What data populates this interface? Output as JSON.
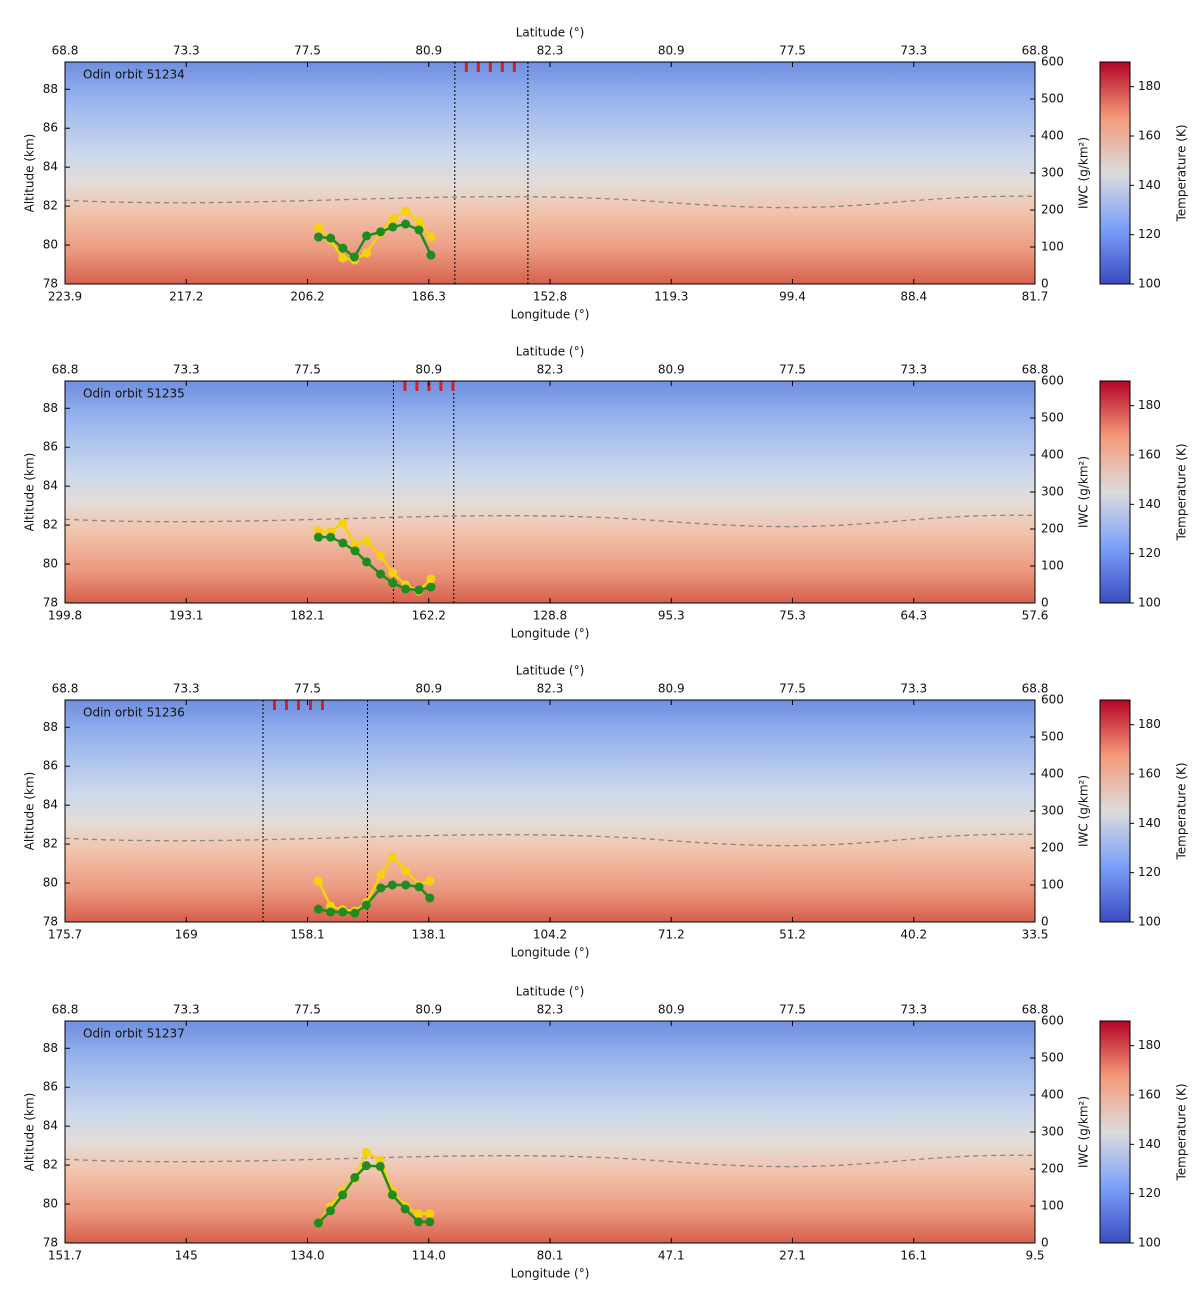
{
  "chart_data": [
    {
      "type": "line",
      "annotation": "Odin orbit 51234",
      "xlabel": "Longitude (°)",
      "x2label": "Latitude (°)",
      "ylabel": "Altitude (km)",
      "y2label": "IWC (g/km²)",
      "colorbar_label": "Temperature (K)",
      "xticks": [
        223.9,
        217.2,
        206.2,
        186.3,
        152.8,
        119.3,
        99.4,
        88.4,
        81.7
      ],
      "x2ticks": [
        68.8,
        73.3,
        77.5,
        80.9,
        82.3,
        80.9,
        77.5,
        73.3,
        68.8
      ],
      "ylim": [
        78,
        89.4
      ],
      "yticks": [
        78,
        80,
        82,
        84,
        86,
        88
      ],
      "y2lim": [
        0,
        600
      ],
      "y2ticks": [
        0,
        100,
        200,
        300,
        400,
        500,
        600
      ],
      "clim": [
        100,
        190
      ],
      "cticks": [
        100,
        120,
        140,
        160,
        180
      ],
      "vlines": [
        179.1,
        158.9
      ],
      "x": [
        204.4,
        202.4,
        200.4,
        198.5,
        196.5,
        194.2,
        192.2,
        190.1,
        187.9,
        185.7
      ],
      "series": [
        {
          "color": "#f5d20a",
          "axis": "y2",
          "values": [
            154,
            119,
            70,
            65,
            84,
            138,
            176,
            197,
            170,
            127
          ]
        },
        {
          "color": "#1e8c1e",
          "axis": "y2",
          "values": [
            127,
            124,
            97,
            73,
            130,
            141,
            154,
            162,
            146,
            78
          ]
        }
      ]
    },
    {
      "type": "line",
      "annotation": "Odin orbit 51235",
      "xlabel": "Longitude (°)",
      "x2label": "Latitude (°)",
      "ylabel": "Altitude (km)",
      "y2label": "IWC (g/km²)",
      "colorbar_label": "Temperature (K)",
      "xticks": [
        199.8,
        193.1,
        182.1,
        162.2,
        128.8,
        95.3,
        75.3,
        64.3,
        57.6
      ],
      "x2ticks": [
        68.8,
        73.3,
        77.5,
        80.9,
        82.3,
        80.9,
        77.5,
        73.3,
        68.8
      ],
      "ylim": [
        78,
        89.4
      ],
      "yticks": [
        78,
        80,
        82,
        84,
        86,
        88
      ],
      "y2lim": [
        0,
        600
      ],
      "y2ticks": [
        0,
        100,
        200,
        300,
        400,
        500,
        600
      ],
      "clim": [
        100,
        190
      ],
      "cticks": [
        100,
        120,
        140,
        160,
        180
      ],
      "vlines": [
        168.0,
        155.3
      ],
      "x": [
        180.3,
        178.3,
        176.3,
        174.3,
        172.4,
        170.1,
        168.1,
        166.0,
        163.8,
        161.6
      ],
      "series": [
        {
          "color": "#f5d20a",
          "axis": "y2",
          "values": [
            195,
            192,
            216,
            157,
            168,
            127,
            81,
            49,
            32,
            65
          ]
        },
        {
          "color": "#1e8c1e",
          "axis": "y2",
          "values": [
            178,
            178,
            162,
            141,
            111,
            78,
            54,
            38,
            35,
            43
          ]
        }
      ]
    },
    {
      "type": "line",
      "annotation": "Odin orbit 51236",
      "xlabel": "Longitude (°)",
      "x2label": "Latitude (°)",
      "ylabel": "Altitude (km)",
      "y2label": "IWC (g/km²)",
      "colorbar_label": "Temperature (K)",
      "xticks": [
        175.7,
        169.0,
        158.1,
        138.1,
        104.2,
        71.2,
        51.2,
        40.2,
        33.5
      ],
      "x2ticks": [
        68.8,
        73.3,
        77.5,
        80.9,
        82.3,
        80.9,
        77.5,
        73.3,
        68.8
      ],
      "ylim": [
        78,
        89.4
      ],
      "yticks": [
        78,
        80,
        82,
        84,
        86,
        88
      ],
      "y2lim": [
        0,
        600
      ],
      "y2ticks": [
        0,
        100,
        200,
        300,
        400,
        500,
        600
      ],
      "clim": [
        100,
        190
      ],
      "cticks": [
        100,
        120,
        140,
        160,
        180
      ],
      "vlines": [
        162.1,
        148.2
      ],
      "x": [
        156.3,
        154.3,
        152.3,
        150.3,
        148.4,
        146.0,
        144.1,
        141.9,
        139.7,
        137.8
      ],
      "series": [
        {
          "color": "#f5d20a",
          "axis": "y2",
          "values": [
            111,
            43,
            33,
            30,
            52,
            128,
            174,
            139,
            100,
            111
          ]
        },
        {
          "color": "#1e8c1e",
          "axis": "y2",
          "values": [
            35,
            27,
            27,
            24,
            46,
            92,
            100,
            100,
            95,
            65
          ]
        }
      ]
    },
    {
      "type": "line",
      "annotation": "Odin orbit 51237",
      "xlabel": "Longitude (°)",
      "x2label": "Latitude (°)",
      "ylabel": "Altitude (km)",
      "y2label": "IWC (g/km²)",
      "colorbar_label": "Temperature (K)",
      "xticks": [
        151.7,
        145.0,
        {
          "value": 134,
          "label": "134.0"
        },
        {
          "value": 114,
          "label": "114.0"
        },
        80.1,
        47.1,
        27.1,
        16.1,
        9.5
      ],
      "x2ticks": [
        68.8,
        73.3,
        77.5,
        80.9,
        82.3,
        80.9,
        77.5,
        73.3,
        68.8
      ],
      "ylim": [
        78,
        89.4
      ],
      "yticks": [
        78,
        80,
        82,
        84,
        86,
        88
      ],
      "y2lim": [
        0,
        600
      ],
      "y2ticks": [
        0,
        100,
        200,
        300,
        400,
        500,
        600
      ],
      "clim": [
        100,
        190
      ],
      "cticks": [
        100,
        120,
        140,
        160,
        180
      ],
      "x": [
        132.2,
        130.2,
        128.2,
        126.2,
        124.3,
        122.0,
        120.0,
        117.9,
        115.7,
        113.7
      ],
      "series": [
        {
          "color": "#f5d20a",
          "axis": "y2",
          "values": [
            54,
            98,
            141,
            174,
            245,
            223,
            141,
            100,
            79,
            79
          ]
        },
        {
          "color": "#1e8c1e",
          "axis": "y2",
          "values": [
            54,
            87,
            130,
            177,
            209,
            207,
            130,
            92,
            57,
            57
          ]
        }
      ]
    }
  ]
}
